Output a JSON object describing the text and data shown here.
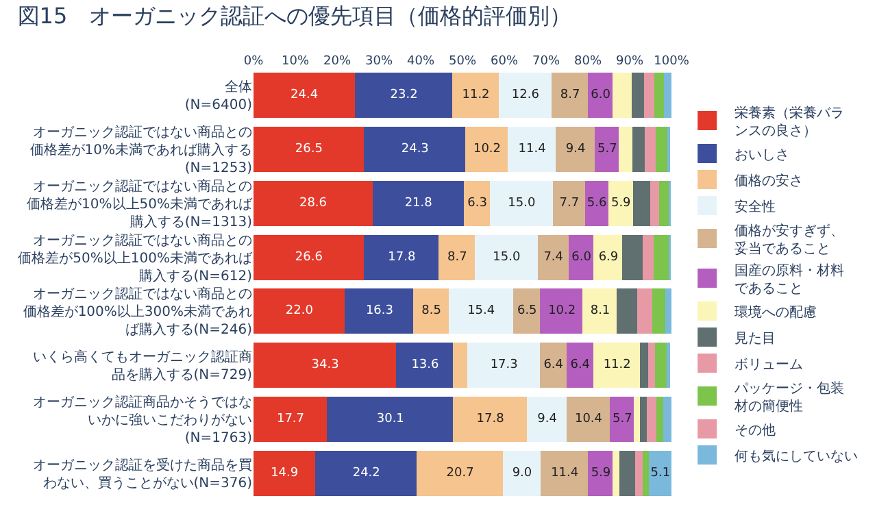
{
  "chart_data": {
    "type": "bar",
    "orientation": "horizontal",
    "stacked": true,
    "title": "図15　オーガニック認証への優先項目（価格的評価別）",
    "categories": [
      "全体(N=6400)",
      "オーガニック認証ではない商品との価格差が10%未満であれば購入する(N=1253)",
      "オーガニック認証ではない商品との価格差が10%以上50%未満であれば購入する(N=1313)",
      "オーガニック認証ではない商品との価格差が50%以上100%未満であれば購入する(N=612)",
      "オーガニック認証ではない商品との価格差が100%以上300%未満であれば購入する(N=246)",
      "いくら高くてもオーガニック認証商品を購入する(N=729)",
      "オーガニック認証商品かそうではないかに強いこだわりがない(N=1763)",
      "オーガニック認証を受けた商品を買わない、買うことがない(N=376)"
    ],
    "xlim": [
      0,
      100
    ],
    "xticks": [
      {
        "value": 0,
        "label": "0%"
      },
      {
        "value": 10,
        "label": "10%"
      },
      {
        "value": 20,
        "label": "20%"
      },
      {
        "value": 30,
        "label": "30%"
      },
      {
        "value": 40,
        "label": "40%"
      },
      {
        "value": 50,
        "label": "50%"
      },
      {
        "value": 60,
        "label": "60%"
      },
      {
        "value": 70,
        "label": "70%"
      },
      {
        "value": 80,
        "label": "80%"
      },
      {
        "value": 90,
        "label": "90%"
      },
      {
        "value": 100,
        "label": "100%"
      }
    ],
    "legend": "right",
    "series": [
      {
        "name": "栄養素（栄養バランスの良さ）",
        "color": "#e3392a",
        "values": [
          24.4,
          26.5,
          28.6,
          26.6,
          22.0,
          34.3,
          17.7,
          14.9
        ],
        "value_labels": [
          "24.4",
          "26.5",
          "28.6",
          "26.6",
          "22.0",
          "34.3",
          "17.7",
          "14.9"
        ]
      },
      {
        "name": "おいしさ",
        "color": "#3d4f9c",
        "values": [
          23.2,
          24.3,
          21.8,
          17.8,
          16.3,
          13.6,
          30.1,
          24.2
        ],
        "value_labels": [
          "23.2",
          "24.3",
          "21.8",
          "17.8",
          "16.3",
          "13.6",
          "30.1",
          "24.2"
        ]
      },
      {
        "name": "価格の安さ",
        "color": "#f6c48e",
        "values": [
          11.2,
          10.2,
          6.3,
          8.7,
          8.5,
          3.4,
          17.8,
          20.7
        ],
        "value_labels": [
          "11.2",
          "10.2",
          "6.3",
          "8.7",
          "8.5",
          null,
          "17.8",
          "20.7"
        ]
      },
      {
        "name": "安全性",
        "color": "#e6f4fa",
        "values": [
          12.6,
          11.4,
          15.0,
          15.0,
          15.4,
          17.3,
          9.4,
          9.0
        ],
        "value_labels": [
          "12.6",
          "11.4",
          "15.0",
          "15.0",
          "15.4",
          "17.3",
          "9.4",
          "9.0"
        ]
      },
      {
        "name": "価格が安すぎず、妥当であること",
        "color": "#d6b48f",
        "values": [
          8.7,
          9.4,
          7.7,
          7.4,
          6.5,
          6.4,
          10.4,
          11.4
        ],
        "value_labels": [
          "8.7",
          "9.4",
          "7.7",
          "7.4",
          "6.5",
          "6.4",
          "10.4",
          "11.4"
        ]
      },
      {
        "name": "国産の原料・材料であること",
        "color": "#b45fc0",
        "values": [
          6.0,
          5.7,
          5.6,
          6.0,
          10.2,
          6.4,
          5.7,
          5.9
        ],
        "value_labels": [
          "6.0",
          "5.7",
          "5.6",
          "6.0",
          "10.2",
          "6.4",
          "5.7",
          "5.9"
        ]
      },
      {
        "name": "環境への配慮",
        "color": "#fbf5b8",
        "values": [
          4.5,
          3.3,
          5.9,
          6.9,
          8.1,
          11.2,
          1.5,
          1.6
        ],
        "value_labels": [
          null,
          null,
          "5.9",
          "6.9",
          "8.1",
          "11.2",
          null,
          null
        ]
      },
      {
        "name": "見た目",
        "color": "#607070",
        "values": [
          3.0,
          3.0,
          4.2,
          4.9,
          4.9,
          2.0,
          1.6,
          3.8
        ]
      },
      {
        "name": "ボリューム",
        "color": "#e79aa5",
        "values": [
          2.4,
          2.6,
          2.0,
          2.6,
          3.6,
          1.6,
          2.3,
          1.8
        ]
      },
      {
        "name": "パッケージ・包装材の簡便性",
        "color": "#7cc44c",
        "values": [
          2.4,
          2.7,
          2.4,
          3.5,
          3.2,
          2.8,
          1.6,
          1.5
        ]
      },
      {
        "name": "その他",
        "color": "#e79aa5",
        "values": [
          null,
          null,
          null,
          null,
          null,
          null,
          null,
          null
        ]
      },
      {
        "name": "何も気にしていない",
        "color": "#7ab8dc",
        "values": [
          1.4,
          0.5,
          0.2,
          0.3,
          1.2,
          0.5,
          1.9,
          5.1
        ],
        "value_labels": [
          null,
          null,
          null,
          null,
          null,
          null,
          null,
          "5.1"
        ]
      }
    ]
  }
}
